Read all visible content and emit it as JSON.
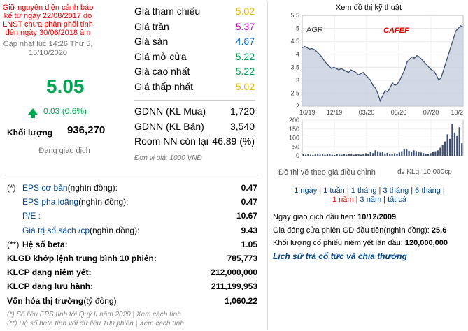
{
  "warning": "Giữ nguyên diện cảnh báo kể từ ngày 22/08/2017 do LNST chưa phân phối tính đến ngày 30/06/2018 âm",
  "updated": "Cập nhật lúc 14:26 Thứ 5, 15/10/2020",
  "price": "5.05",
  "change": "0.03 (0.6%)",
  "volume_label": "Khối lượng",
  "volume_value": "936,270",
  "trading_status": "Đang giao dịch",
  "prices": [
    {
      "label": "Giá tham chiếu",
      "value": "5.02",
      "color": "#e8b800"
    },
    {
      "label": "Giá trần",
      "value": "5.37",
      "color": "#d200d2"
    },
    {
      "label": "Giá sàn",
      "value": "4.67",
      "color": "#0066cc"
    },
    {
      "label": "Giá mở cửa",
      "value": "5.22",
      "color": "#00a651"
    },
    {
      "label": "Giá cao nhất",
      "value": "5.22",
      "color": "#00a651"
    },
    {
      "label": "Giá thấp nhất",
      "value": "5.02",
      "color": "#e8b800"
    }
  ],
  "foreign": [
    {
      "label": "GDNN (KL Mua)",
      "value": "1,720"
    },
    {
      "label": "GDNN (KL Bán)",
      "value": "3,540"
    },
    {
      "label": "Room NN còn lại",
      "value": "46.89 (%)"
    }
  ],
  "unit": "Đơn vị giá: 1000 VNĐ",
  "fundamentals": [
    {
      "mark": "(*)",
      "label": "EPS cơ bản",
      "sub": " (nghìn đồng):",
      "value": "0.47"
    },
    {
      "mark": "",
      "label": "EPS pha loãng",
      "sub": " (nghìn đồng):",
      "value": "0.47"
    },
    {
      "mark": "",
      "label": "P/E :",
      "sub": "",
      "value": "10.67"
    },
    {
      "mark": "",
      "label": "Giá trị sổ sách /cp",
      "sub": " (nghìn đồng):",
      "value": "9.43"
    },
    {
      "mark": "(**)",
      "label": "Hệ số beta:",
      "sub": "",
      "value": "1.05"
    },
    {
      "mark": "",
      "label": "KLGD khớp lệnh trung bình 10 phiên:",
      "sub": "",
      "value": "785,773"
    },
    {
      "mark": "",
      "label": "KLCP đang niêm yết:",
      "sub": "",
      "value": "212,000,000"
    },
    {
      "mark": "",
      "label": "KLCP đang lưu hành:",
      "sub": "",
      "value": "211,199,953"
    },
    {
      "mark": "",
      "label": "Vốn hóa thị trường",
      "sub": " (tỷ đồng)",
      "value": "1,060.22"
    }
  ],
  "notes": [
    "(*) Số liệu EPS tính tới Quý II năm 2020 | Xem cách tính",
    "(**) Hệ số beta tính với dữ liệu 100 phiên | Xem cách tính"
  ],
  "chart": {
    "title": "Xem đồ thị kỹ thuật",
    "ticker": "AGR",
    "brand": "CAFEF",
    "note_left": "Đồ thị vẽ theo giá điều chỉnh",
    "note_right": "đv KLg: 10,000cp",
    "line_color": "#3d4f73",
    "fill_color": "#c7cfdd",
    "volume_color": "#3d4f73"
  },
  "chart_data": {
    "type": "area",
    "x_ticks": [
      "10/19",
      "12/19",
      "03/20",
      "05/20",
      "07/20",
      "10/2"
    ],
    "y_ticks": [
      "5.5",
      "5",
      "4.5",
      "4",
      "3.5",
      "3",
      "2.5",
      "2"
    ],
    "ylim": [
      2,
      5.5
    ],
    "price": [
      4.25,
      4.3,
      4.25,
      4.2,
      4.22,
      4.18,
      4.1,
      4.0,
      3.9,
      3.75,
      3.65,
      3.55,
      3.45,
      3.5,
      3.45,
      3.4,
      3.45,
      3.4,
      3.35,
      3.3,
      3.4,
      3.35,
      3.3,
      3.2,
      3.25,
      3.3,
      3.2,
      3.1,
      3.0,
      2.8,
      2.7,
      2.5,
      2.2,
      2.4,
      2.6,
      2.55,
      2.7,
      2.9,
      2.8,
      2.85,
      3.0,
      3.2,
      3.4,
      3.7,
      3.8,
      3.9,
      3.85,
      3.95,
      3.9,
      3.8,
      3.7,
      3.6,
      3.5,
      3.4,
      3.35,
      3.2,
      3.0,
      3.1,
      3.4,
      3.7,
      4.0,
      4.3,
      4.6,
      4.9,
      5.0,
      5.1,
      5.05
    ],
    "volume_ticks": [
      "200",
      "150",
      "100",
      "50",
      "0"
    ],
    "volume_ylim": [
      0,
      200
    ],
    "volume": [
      8,
      5,
      10,
      6,
      4,
      7,
      12,
      6,
      9,
      5,
      8,
      11,
      6,
      4,
      9,
      7,
      5,
      10,
      6,
      8,
      12,
      5,
      7,
      9,
      6,
      10,
      14,
      8,
      20,
      15,
      30,
      25,
      18,
      22,
      12,
      16,
      10,
      8,
      14,
      12,
      18,
      25,
      35,
      40,
      28,
      22,
      30,
      26,
      20,
      18,
      15,
      12,
      10,
      14,
      20,
      25,
      30,
      45,
      60,
      80,
      120,
      95,
      180,
      130,
      110,
      160,
      70
    ]
  },
  "ranges": {
    "items": [
      "1 ngày",
      "1 tuần",
      "1 tháng",
      "3 tháng",
      "6 tháng",
      "1 năm",
      "3 năm",
      "tất cả"
    ],
    "selected": "1 năm"
  },
  "info": [
    {
      "label": "Ngày giao dịch đầu tiên: ",
      "value": "10/12/2009"
    },
    {
      "label": "Giá đóng cửa phiên GD đầu tiên(nghìn đồng): ",
      "value": "25.6"
    },
    {
      "label": "Khối lượng cổ phiếu niêm yết lần đầu: ",
      "value": "120,000,000"
    }
  ],
  "history_link": "Lịch sử trả cổ tức và chia thưởng"
}
